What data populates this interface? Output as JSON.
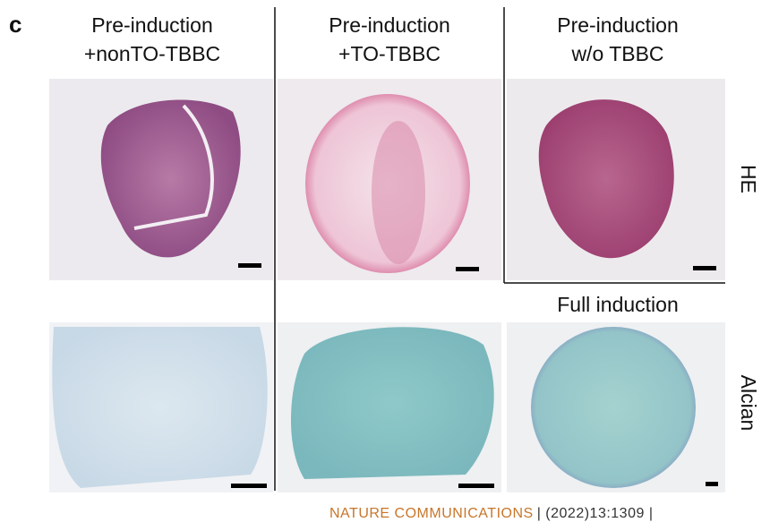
{
  "panel_label": "c",
  "columns": [
    {
      "line1": "Pre-induction",
      "line2": "+nonTO-TBBC"
    },
    {
      "line1": "Pre-induction",
      "line2": "+TO-TBBC"
    },
    {
      "line1": "Pre-induction",
      "line2": "w/o TBBC"
    }
  ],
  "row_labels": [
    "HE",
    "Alcian"
  ],
  "extra_label": "Full induction",
  "footer": {
    "journal": "NATURE COMMUNICATIONS",
    "citation": "| (2022)13:1309 |"
  }
}
